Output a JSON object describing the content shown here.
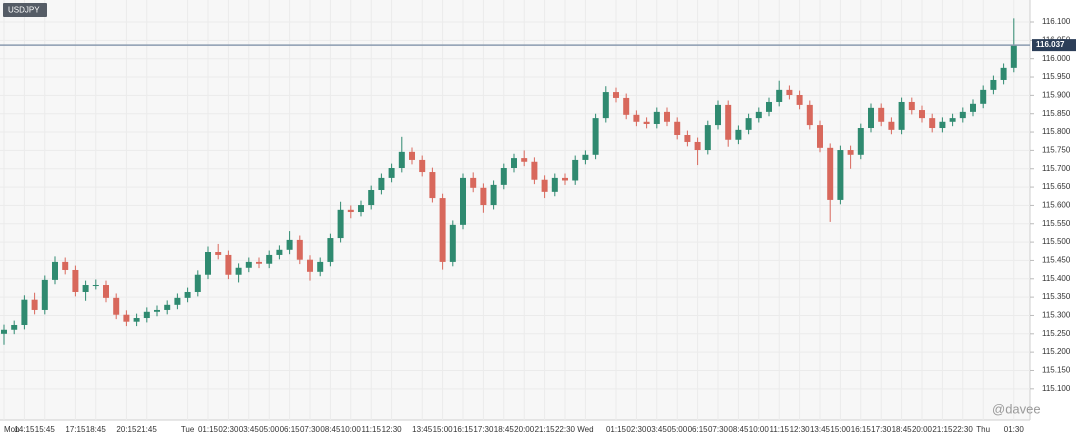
{
  "chart_data": {
    "type": "candlestick",
    "title": "USDJPY",
    "categories": [
      "Mon",
      null,
      "14:15",
      null,
      "15:45",
      null,
      null,
      "17:15",
      null,
      "18:45",
      null,
      null,
      "20:15",
      null,
      "21:45",
      null,
      null,
      null,
      "Tue",
      null,
      "01:15",
      null,
      "02:30",
      null,
      "03:45",
      null,
      "05:00",
      null,
      "06:15",
      null,
      "07:30",
      null,
      "08:45",
      null,
      "10:00",
      null,
      "11:15",
      null,
      "12:30",
      null,
      null,
      "13:45",
      null,
      "15:00",
      null,
      "16:15",
      null,
      "17:30",
      null,
      "18:45",
      null,
      "20:00",
      null,
      "21:15",
      null,
      "22:30",
      null,
      "Wed",
      null,
      null,
      "01:15",
      null,
      "02:30",
      null,
      "03:45",
      null,
      "05:00",
      null,
      "06:15",
      null,
      "07:30",
      null,
      "08:45",
      null,
      "10:00",
      null,
      "11:15",
      null,
      "12:30",
      null,
      "13:45",
      null,
      "15:00",
      null,
      "16:15",
      null,
      "17:30",
      null,
      "18:45",
      null,
      "20:00",
      null,
      "21:15",
      null,
      "22:30",
      null,
      "Thu",
      null,
      null,
      "01:30"
    ],
    "open": [
      115.25,
      115.261,
      115.274,
      115.343,
      115.315,
      115.397,
      115.446,
      115.424,
      115.364,
      115.383,
      115.383,
      115.348,
      115.302,
      115.283,
      115.293,
      115.31,
      115.315,
      115.329,
      115.348,
      115.364,
      115.411,
      115.473,
      115.465,
      115.411,
      115.43,
      115.446,
      115.441,
      115.465,
      115.479,
      115.506,
      115.452,
      115.419,
      115.446,
      115.511,
      115.588,
      115.582,
      115.601,
      115.642,
      115.675,
      115.702,
      115.746,
      115.724,
      115.691,
      115.62,
      115.446,
      115.547,
      115.675,
      115.648,
      115.601,
      115.656,
      115.702,
      115.729,
      115.719,
      115.67,
      115.637,
      115.675,
      115.668,
      115.724,
      115.738,
      115.838,
      115.909,
      115.893,
      115.847,
      115.828,
      115.822,
      115.855,
      115.828,
      115.792,
      115.773,
      115.751,
      115.819,
      115.874,
      115.779,
      115.806,
      115.838,
      115.855,
      115.882,
      115.915,
      115.901,
      115.874,
      115.819,
      115.757,
      115.615,
      115.751,
      115.738,
      115.811,
      115.866,
      115.828,
      115.806,
      115.882,
      115.86,
      115.838,
      115.811,
      115.828,
      115.838,
      115.855,
      115.877,
      115.915,
      115.942,
      115.975
    ],
    "high": [
      115.275,
      115.286,
      115.355,
      115.362,
      115.409,
      115.461,
      115.458,
      115.436,
      115.395,
      115.398,
      115.395,
      115.36,
      115.314,
      115.305,
      115.322,
      115.327,
      115.341,
      115.36,
      115.376,
      115.423,
      115.488,
      115.495,
      115.477,
      115.442,
      115.458,
      115.458,
      115.477,
      115.491,
      115.53,
      115.518,
      115.464,
      115.458,
      115.523,
      115.61,
      115.6,
      115.613,
      115.654,
      115.687,
      115.714,
      115.787,
      115.758,
      115.736,
      115.703,
      115.632,
      115.559,
      115.687,
      115.69,
      115.66,
      115.668,
      115.714,
      115.741,
      115.75,
      115.731,
      115.682,
      115.687,
      115.687,
      115.736,
      115.75,
      115.85,
      115.925,
      115.921,
      115.905,
      115.859,
      115.84,
      115.867,
      115.867,
      115.84,
      115.804,
      115.785,
      115.831,
      115.886,
      115.886,
      115.818,
      115.85,
      115.867,
      115.894,
      115.94,
      115.927,
      115.913,
      115.886,
      115.831,
      115.769,
      115.763,
      115.763,
      115.823,
      115.878,
      115.878,
      115.84,
      115.894,
      115.894,
      115.872,
      115.85,
      115.84,
      115.85,
      115.867,
      115.889,
      115.927,
      115.954,
      115.987,
      116.11
    ],
    "low": [
      115.22,
      115.249,
      115.262,
      115.303,
      115.303,
      115.385,
      115.412,
      115.352,
      115.34,
      115.371,
      115.336,
      115.29,
      115.271,
      115.271,
      115.281,
      115.298,
      115.303,
      115.317,
      115.336,
      115.352,
      115.399,
      115.453,
      115.399,
      115.39,
      115.418,
      115.429,
      115.429,
      115.453,
      115.467,
      115.44,
      115.395,
      115.407,
      115.434,
      115.499,
      115.565,
      115.57,
      115.589,
      115.63,
      115.663,
      115.69,
      115.712,
      115.679,
      115.608,
      115.425,
      115.434,
      115.535,
      115.636,
      115.58,
      115.589,
      115.644,
      115.69,
      115.707,
      115.658,
      115.62,
      115.625,
      115.656,
      115.656,
      115.712,
      115.726,
      115.826,
      115.881,
      115.835,
      115.816,
      115.81,
      115.81,
      115.816,
      115.78,
      115.761,
      115.71,
      115.739,
      115.807,
      115.76,
      115.767,
      115.794,
      115.826,
      115.843,
      115.87,
      115.889,
      115.862,
      115.807,
      115.745,
      115.555,
      115.603,
      115.7,
      115.726,
      115.799,
      115.816,
      115.794,
      115.794,
      115.848,
      115.826,
      115.799,
      115.799,
      115.816,
      115.826,
      115.843,
      115.865,
      115.903,
      115.93,
      115.963
    ],
    "close": [
      115.261,
      115.274,
      115.343,
      115.315,
      115.397,
      115.446,
      115.424,
      115.364,
      115.383,
      115.383,
      115.348,
      115.302,
      115.283,
      115.293,
      115.31,
      115.315,
      115.329,
      115.348,
      115.364,
      115.411,
      115.473,
      115.465,
      115.411,
      115.43,
      115.446,
      115.441,
      115.465,
      115.479,
      115.506,
      115.452,
      115.419,
      115.446,
      115.511,
      115.588,
      115.582,
      115.601,
      115.642,
      115.675,
      115.702,
      115.746,
      115.724,
      115.691,
      115.62,
      115.446,
      115.547,
      115.675,
      115.648,
      115.601,
      115.656,
      115.702,
      115.729,
      115.719,
      115.67,
      115.637,
      115.675,
      115.668,
      115.724,
      115.738,
      115.838,
      115.909,
      115.893,
      115.847,
      115.828,
      115.822,
      115.855,
      115.828,
      115.792,
      115.773,
      115.751,
      115.819,
      115.874,
      115.779,
      115.806,
      115.838,
      115.855,
      115.882,
      115.915,
      115.901,
      115.874,
      115.819,
      115.757,
      115.615,
      115.751,
      115.738,
      115.811,
      115.866,
      115.828,
      115.806,
      115.882,
      115.86,
      115.838,
      115.811,
      115.828,
      115.838,
      115.855,
      115.877,
      115.915,
      115.942,
      115.975,
      116.037
    ],
    "up_color": "#2f8a70",
    "down_color": "#d8685c",
    "current_price": 116.037,
    "current_price_color": "#8a9bb0",
    "ylim": [
      115.015,
      116.16
    ],
    "yticks": [
      {
        "value": 115.1,
        "label": "115.100"
      },
      {
        "value": 115.15,
        "label": "115.150"
      },
      {
        "value": 115.2,
        "label": "115.200"
      },
      {
        "value": 115.25,
        "label": "115.250"
      },
      {
        "value": 115.3,
        "label": "115.300"
      },
      {
        "value": 115.35,
        "label": "115.350"
      },
      {
        "value": 115.4,
        "label": "115.400"
      },
      {
        "value": 115.45,
        "label": "115.450"
      },
      {
        "value": 115.5,
        "label": "115.500"
      },
      {
        "value": 115.55,
        "label": "115.550"
      },
      {
        "value": 115.6,
        "label": "115.600"
      },
      {
        "value": 115.65,
        "label": "115.650"
      },
      {
        "value": 115.7,
        "label": "115.700"
      },
      {
        "value": 115.75,
        "label": "115.750"
      },
      {
        "value": 115.8,
        "label": "115.800"
      },
      {
        "value": 115.85,
        "label": "115.850"
      },
      {
        "value": 115.9,
        "label": "115.900"
      },
      {
        "value": 115.95,
        "label": "115.950"
      },
      {
        "value": 116.0,
        "label": "116.000"
      },
      {
        "value": 116.05,
        "label": "116.050"
      },
      {
        "value": 116.1,
        "label": "116.100"
      }
    ],
    "grid": true,
    "watermark": "@davee"
  }
}
